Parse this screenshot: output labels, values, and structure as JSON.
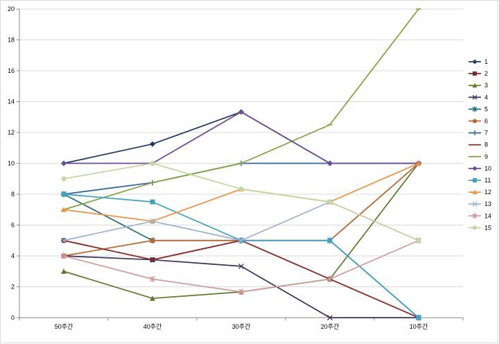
{
  "chart_data": {
    "type": "line",
    "categories": [
      "50주간",
      "40주간",
      "30주간",
      "20주간",
      "10주간"
    ],
    "ylim": [
      0,
      20
    ],
    "y_ticks": [
      0,
      2,
      4,
      6,
      8,
      10,
      12,
      14,
      16,
      18,
      20
    ],
    "grid": "horizontal major gridlines",
    "legend_position": "right",
    "series": [
      {
        "name": "1",
        "color": "#1f3864",
        "marker": "diamond",
        "values": [
          10,
          11.25,
          13.33,
          10,
          10
        ]
      },
      {
        "name": "2",
        "color": "#7f2a26",
        "marker": "square",
        "values": [
          5,
          3.75,
          5,
          2.5,
          0
        ]
      },
      {
        "name": "3",
        "color": "#5f7a2b",
        "marker": "triangle",
        "values": [
          3,
          1.25,
          1.67,
          2.5,
          10
        ]
      },
      {
        "name": "4",
        "color": "#3f2f5f",
        "marker": "x",
        "values": [
          4,
          3.75,
          3.33,
          0,
          0
        ]
      },
      {
        "name": "5",
        "color": "#1f6f7f",
        "marker": "star",
        "values": [
          8,
          5,
          5,
          5,
          0
        ]
      },
      {
        "name": "6",
        "color": "#b8642a",
        "marker": "circle",
        "values": [
          4,
          5,
          5,
          5,
          10
        ]
      },
      {
        "name": "7",
        "color": "#2e64a0",
        "marker": "plus",
        "values": [
          8,
          8.75,
          10,
          10,
          10
        ]
      },
      {
        "name": "8",
        "color": "#8b2f2a",
        "marker": "none",
        "values": [
          5,
          3.75,
          5,
          2.5,
          0
        ]
      },
      {
        "name": "9",
        "color": "#80a43c",
        "marker": "dash",
        "values": [
          7,
          8.75,
          10,
          12.5,
          20
        ]
      },
      {
        "name": "10",
        "color": "#6e4a96",
        "marker": "diamond",
        "values": [
          10,
          10,
          13.33,
          10,
          10
        ]
      },
      {
        "name": "11",
        "color": "#3da3c0",
        "marker": "square",
        "values": [
          8,
          7.5,
          5,
          5,
          0
        ]
      },
      {
        "name": "12",
        "color": "#f0913c",
        "marker": "triangle",
        "values": [
          7,
          6.25,
          8.33,
          7.5,
          10
        ]
      },
      {
        "name": "13",
        "color": "#9bb3d6",
        "marker": "x",
        "values": [
          5,
          6.25,
          5,
          7.5,
          5
        ]
      },
      {
        "name": "14",
        "color": "#d39a9a",
        "marker": "star",
        "values": [
          4,
          2.5,
          1.67,
          2.5,
          5
        ]
      },
      {
        "name": "15",
        "color": "#c3d69b",
        "marker": "circle",
        "values": [
          9,
          10,
          8.33,
          7.5,
          5
        ]
      }
    ]
  }
}
